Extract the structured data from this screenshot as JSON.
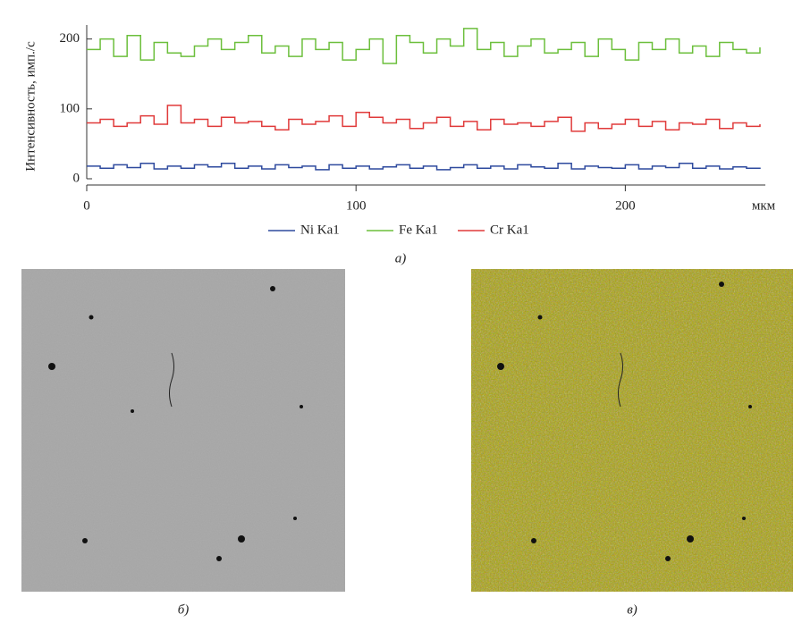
{
  "chart_data": {
    "type": "line",
    "step": true,
    "xlabel": "мкм",
    "ylabel": "Интенсивность, имп./с",
    "x": [
      0,
      5,
      10,
      15,
      20,
      25,
      30,
      35,
      40,
      45,
      50,
      55,
      60,
      65,
      70,
      75,
      80,
      85,
      90,
      95,
      100,
      105,
      110,
      115,
      120,
      125,
      130,
      135,
      140,
      145,
      150,
      155,
      160,
      165,
      170,
      175,
      180,
      185,
      190,
      195,
      200,
      205,
      210,
      215,
      220,
      225,
      230,
      235,
      240,
      245,
      250
    ],
    "series": [
      {
        "name": "Ni Ka1",
        "color": "#2e4a9e",
        "values": [
          18,
          15,
          20,
          16,
          22,
          14,
          18,
          15,
          20,
          17,
          22,
          15,
          18,
          14,
          20,
          16,
          18,
          13,
          20,
          15,
          18,
          14,
          17,
          20,
          15,
          18,
          13,
          16,
          20,
          15,
          18,
          14,
          20,
          17,
          15,
          22,
          14,
          18,
          16,
          15,
          20,
          14,
          18,
          16,
          22,
          15,
          18,
          14,
          17,
          15,
          16
        ]
      },
      {
        "name": "Fe Ka1",
        "color": "#6cbf3c",
        "values": [
          185,
          200,
          175,
          205,
          170,
          195,
          180,
          175,
          190,
          200,
          185,
          195,
          205,
          180,
          190,
          175,
          200,
          185,
          195,
          170,
          185,
          200,
          165,
          205,
          195,
          180,
          200,
          190,
          215,
          185,
          195,
          175,
          190,
          200,
          180,
          185,
          195,
          175,
          200,
          185,
          170,
          195,
          185,
          200,
          180,
          190,
          175,
          195,
          185,
          180,
          188
        ]
      },
      {
        "name": "Cr Ka1",
        "color": "#e03a3a",
        "values": [
          80,
          85,
          75,
          80,
          90,
          78,
          105,
          80,
          85,
          75,
          88,
          80,
          82,
          75,
          70,
          85,
          78,
          82,
          90,
          75,
          95,
          88,
          80,
          85,
          72,
          80,
          88,
          75,
          82,
          70,
          85,
          78,
          80,
          75,
          82,
          88,
          68,
          80,
          72,
          78,
          85,
          75,
          82,
          70,
          80,
          78,
          85,
          72,
          80,
          75,
          78
        ]
      }
    ],
    "xlim": [
      0,
      252
    ],
    "xticks": [
      0,
      100,
      200
    ],
    "ylim": [
      0,
      220
    ],
    "yticks": [
      0,
      100,
      200
    ],
    "legend": "bottom"
  },
  "captions": [
    "а)",
    "б)",
    "в)"
  ]
}
